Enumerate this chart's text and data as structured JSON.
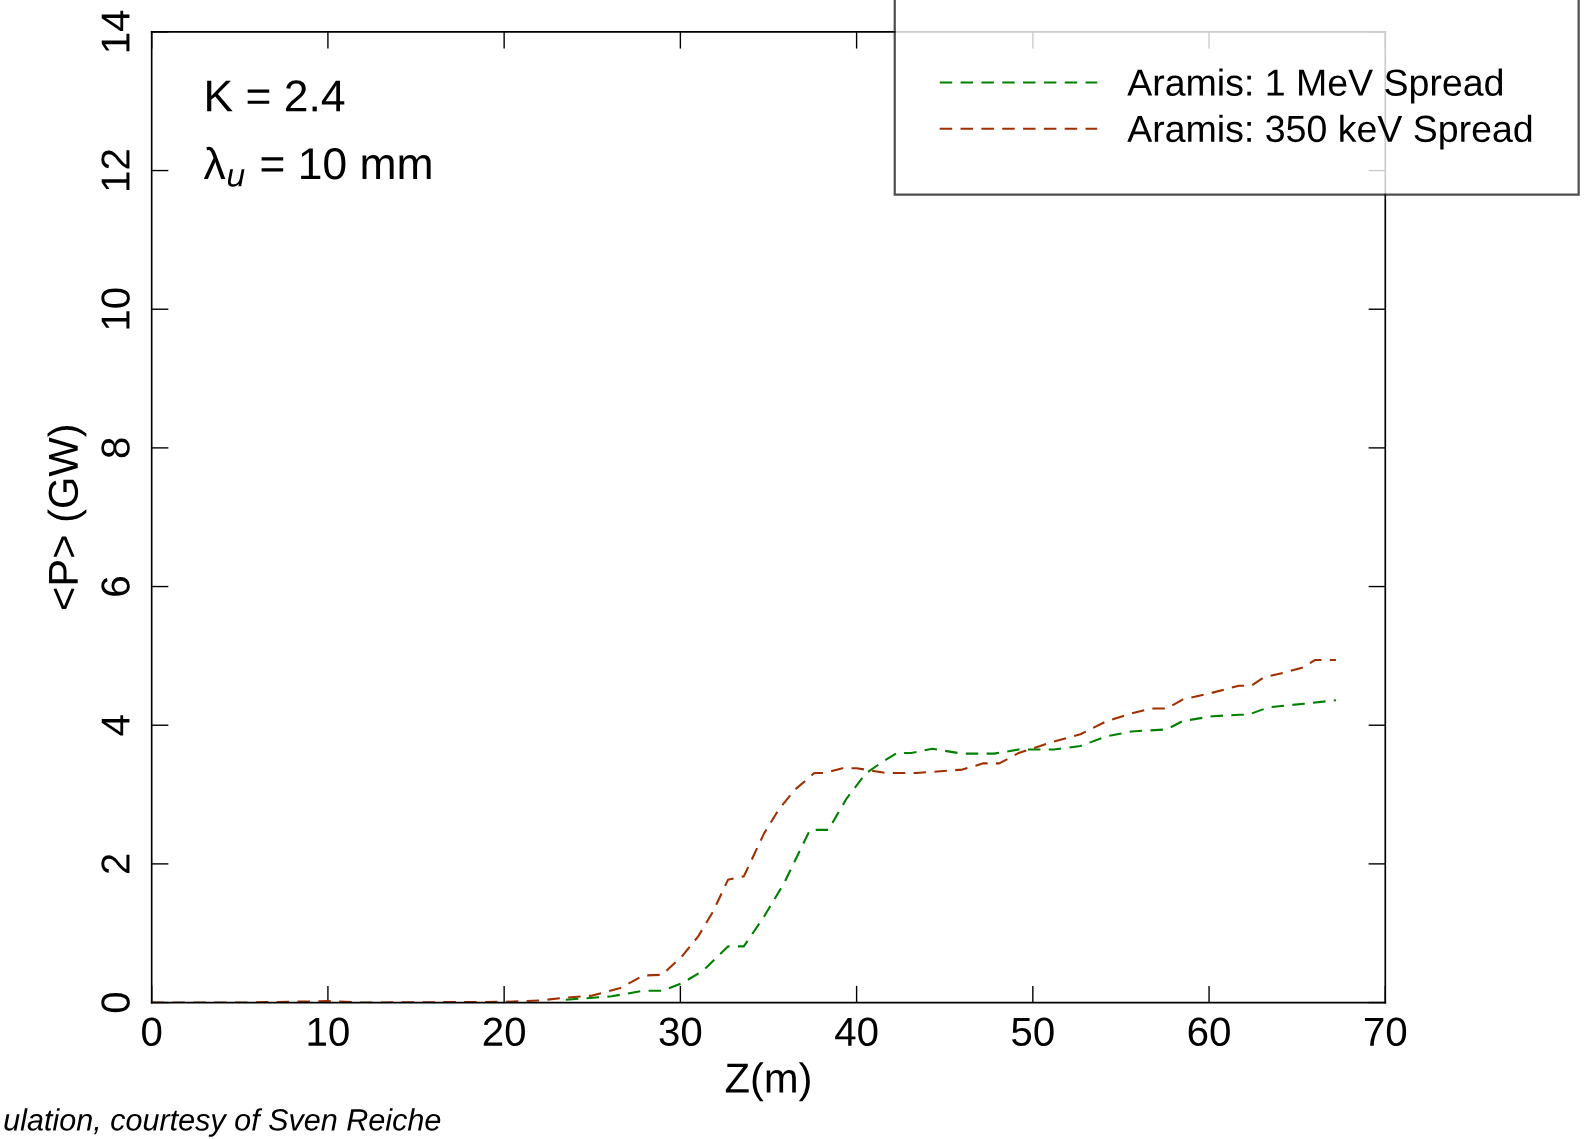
{
  "chart_data": {
    "type": "line",
    "xlabel": "Z(m)",
    "ylabel": "<P> (GW)",
    "xlim": [
      0,
      70
    ],
    "ylim": [
      0,
      14
    ],
    "xticks": [
      0,
      10,
      20,
      30,
      40,
      50,
      60,
      70
    ],
    "yticks": [
      0,
      2,
      4,
      6,
      8,
      10,
      12,
      14
    ],
    "grid": false,
    "legend": "top right",
    "line_style": "dashed",
    "marker": "none",
    "annotations": [
      "K = 2.4",
      "λ$_{u}$ = 10 mm",
      "ulation, courtesy of Sven Reiche"
    ],
    "series": [
      {
        "name": "Aramis: 1 MeV Spread",
        "color": "#008000",
        "x": [
          23.5,
          26.1,
          27.9,
          29,
          30.1,
          31.3,
          32.7,
          33.6,
          34.75,
          35.9,
          37.35,
          38.4,
          39.4,
          40.5,
          41.4,
          42.3,
          43.1,
          44.3,
          46,
          47.8,
          49.2,
          51.2,
          52.7,
          54.2,
          55.6,
          57.6,
          58.5,
          60.2,
          61.7,
          62.2,
          63.4,
          65.4,
          67.2
        ],
        "values": [
          0.04,
          0.09,
          0.17,
          0.17,
          0.28,
          0.46,
          0.81,
          0.81,
          1.24,
          1.73,
          2.49,
          2.49,
          2.93,
          3.3,
          3.46,
          3.6,
          3.6,
          3.66,
          3.59,
          3.59,
          3.65,
          3.65,
          3.7,
          3.84,
          3.91,
          3.94,
          4.06,
          4.13,
          4.15,
          4.15,
          4.26,
          4.31,
          4.36
        ]
      },
      {
        "name": "Aramis: 350 keV Spread",
        "color": "#a03000",
        "x": [
          0,
          5,
          10,
          12,
          20,
          22,
          23.5,
          25,
          26.6,
          27.9,
          28.96,
          30.1,
          31,
          31.85,
          32.7,
          33.6,
          34.75,
          35.6,
          36.5,
          37.6,
          38.2,
          39.2,
          40,
          41.7,
          43.4,
          46,
          47.2,
          48.1,
          49.2,
          51,
          52.7,
          54.2,
          55.6,
          56.7,
          57.6,
          58.5,
          60.2,
          61.7,
          62.4,
          63.1,
          64.3,
          65.4,
          66,
          67.2
        ],
        "values": [
          0,
          0,
          0.02,
          0,
          0.01,
          0.03,
          0.07,
          0.1,
          0.21,
          0.39,
          0.4,
          0.67,
          0.95,
          1.31,
          1.77,
          1.82,
          2.44,
          2.79,
          3.07,
          3.31,
          3.31,
          3.38,
          3.38,
          3.31,
          3.31,
          3.36,
          3.45,
          3.45,
          3.6,
          3.75,
          3.87,
          4.06,
          4.17,
          4.24,
          4.24,
          4.37,
          4.47,
          4.57,
          4.57,
          4.69,
          4.76,
          4.84,
          4.94,
          4.94
        ]
      }
    ]
  }
}
